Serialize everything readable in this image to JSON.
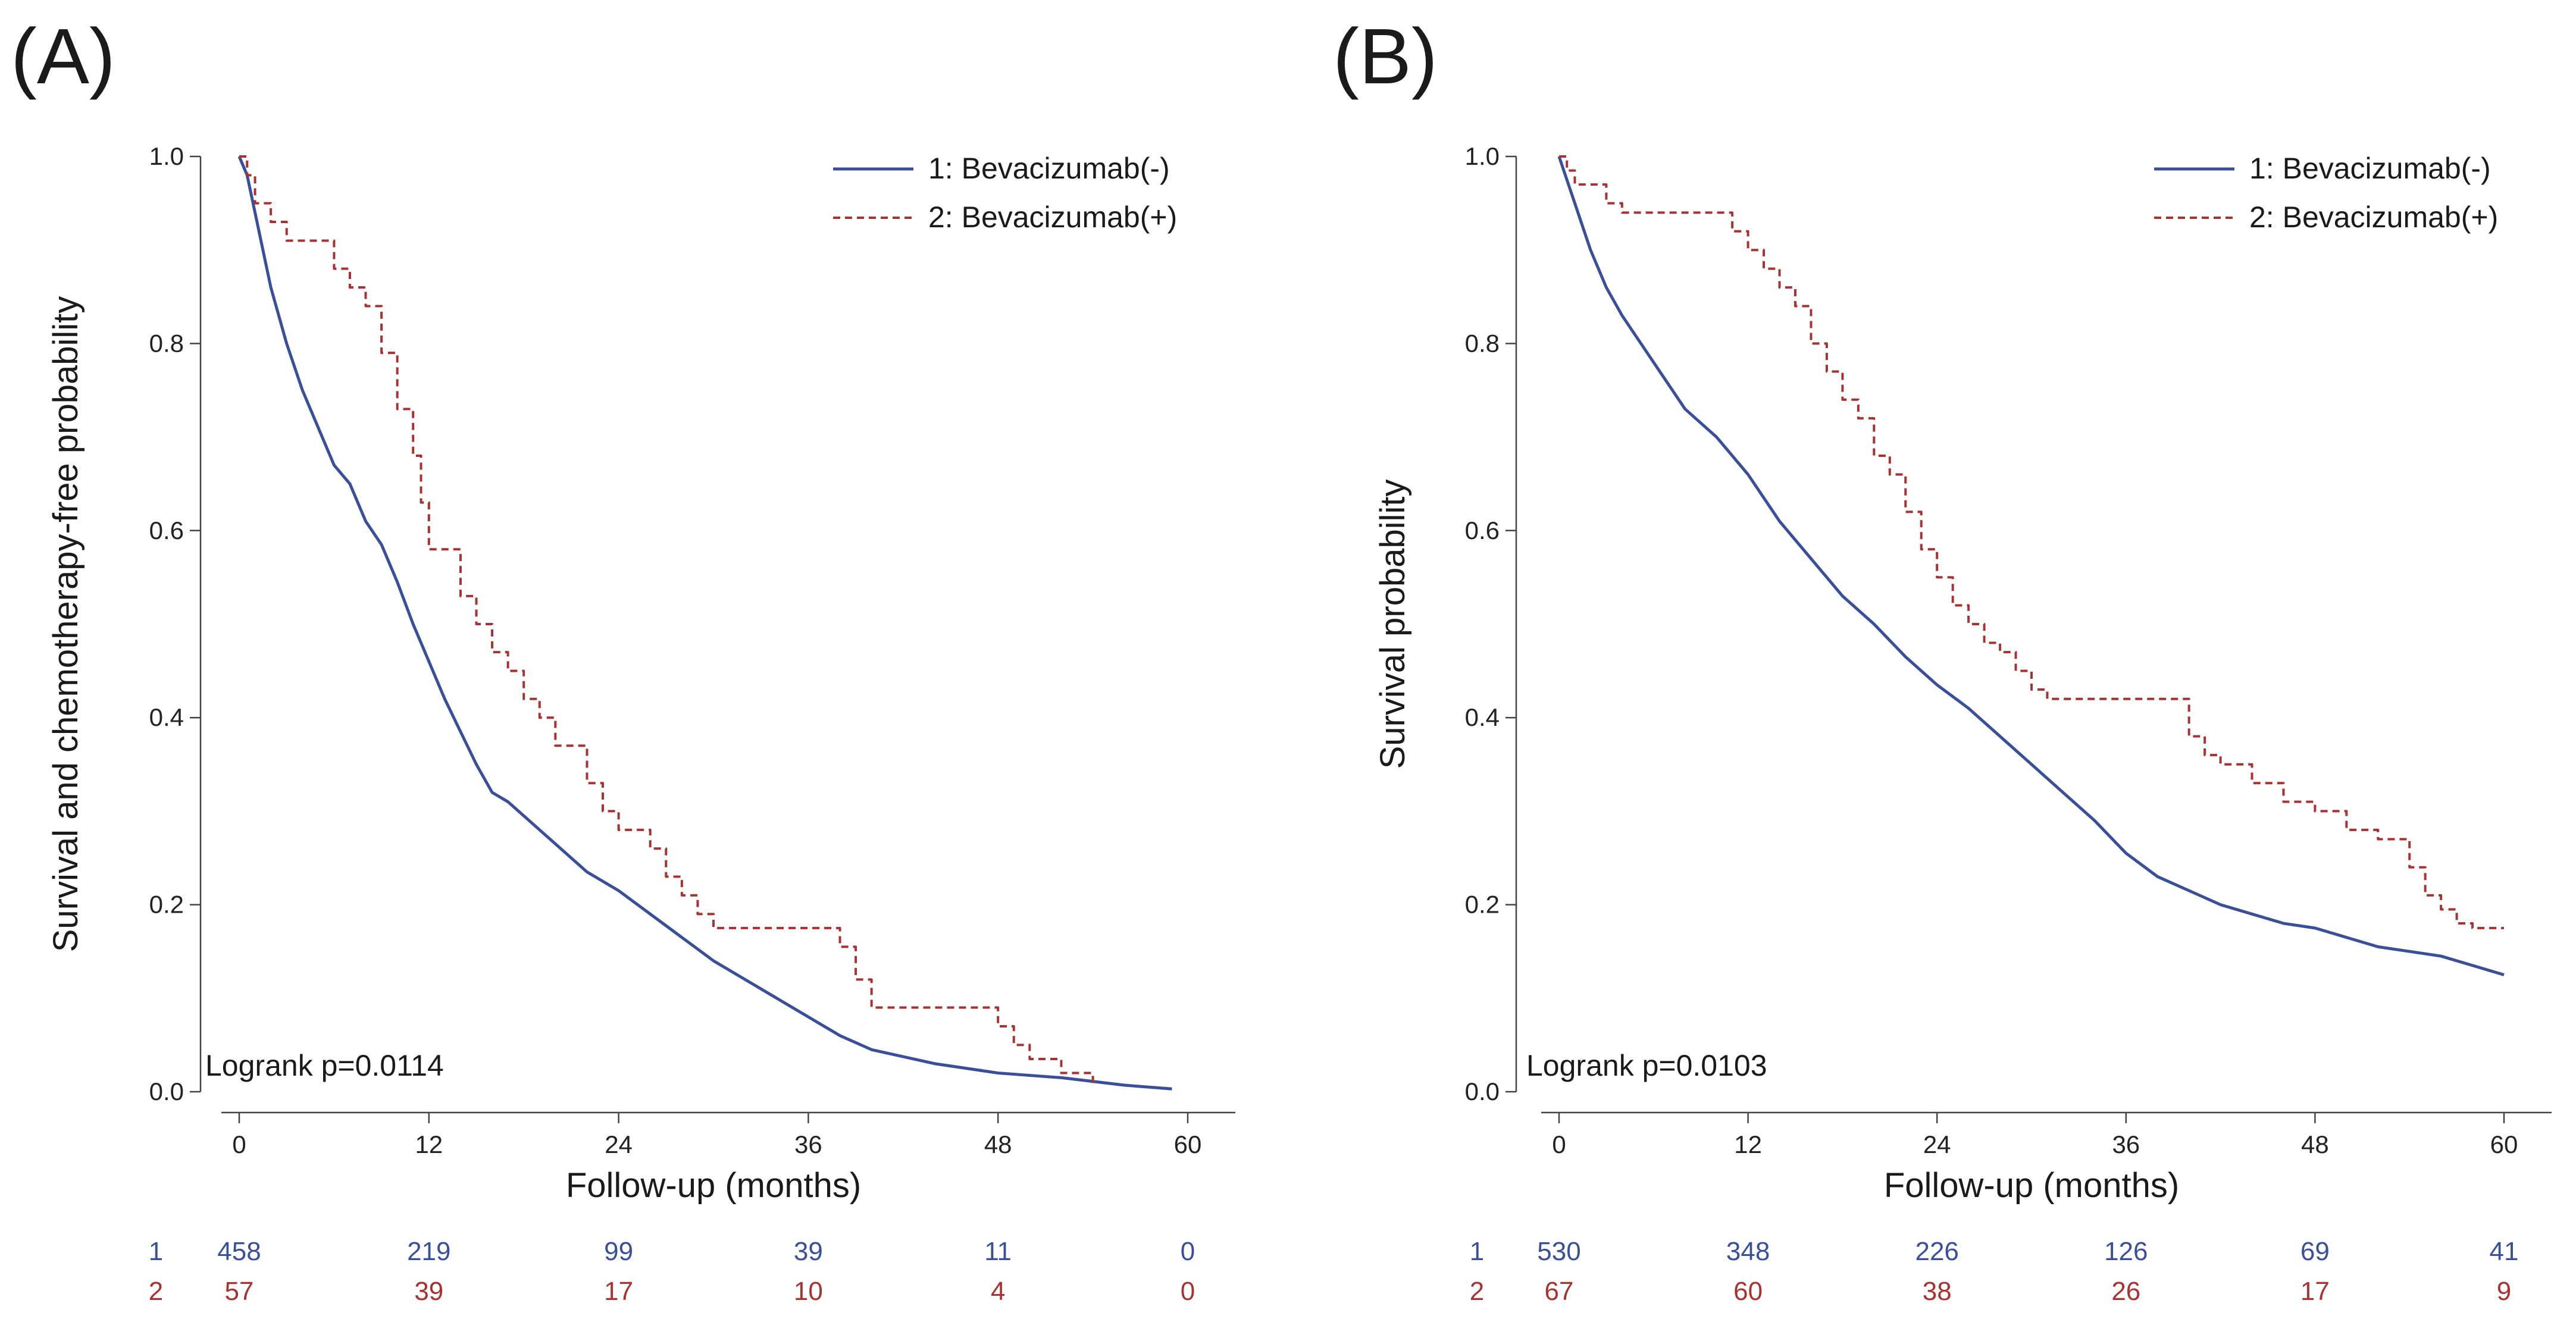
{
  "chart_data": [
    {
      "type": "line",
      "panel_label": "(A)",
      "ylabel": "Survival and chemotherapy-free probability",
      "xlabel": "Follow-up (months)",
      "xlim": [
        0,
        60
      ],
      "ylim": [
        0,
        1
      ],
      "xticks": [
        "0",
        "12",
        "24",
        "36",
        "48",
        "60"
      ],
      "yticks": [
        "0.0",
        "0.2",
        "0.4",
        "0.6",
        "0.8",
        "1.0"
      ],
      "annotation": "Logrank p=0.0114",
      "legend": {
        "position": "top-right",
        "entries": [
          "1: Bevacizumab(-)",
          "2: Bevacizumab(+)"
        ]
      },
      "series": [
        {
          "name": "1: Bevacizumab(-)",
          "color": "#3a4f9a",
          "style": "solid",
          "x": [
            0,
            0.5,
            1,
            1.5,
            2,
            3,
            4,
            5,
            6,
            7,
            8,
            9,
            10,
            11,
            12,
            13,
            14,
            15,
            16,
            17,
            18,
            20,
            22,
            24,
            26,
            28,
            30,
            32,
            34,
            36,
            38,
            40,
            44,
            48,
            52,
            56,
            59
          ],
          "values": [
            1.0,
            0.98,
            0.94,
            0.9,
            0.86,
            0.8,
            0.75,
            0.71,
            0.67,
            0.65,
            0.61,
            0.585,
            0.545,
            0.5,
            0.46,
            0.42,
            0.385,
            0.35,
            0.32,
            0.31,
            0.295,
            0.265,
            0.235,
            0.215,
            0.19,
            0.165,
            0.14,
            0.12,
            0.1,
            0.08,
            0.06,
            0.045,
            0.03,
            0.02,
            0.015,
            0.007,
            0.003
          ]
        },
        {
          "name": "2: Bevacizumab(+)",
          "color": "#a83232",
          "style": "dashed",
          "step": true,
          "x": [
            0,
            0.5,
            1,
            2,
            3,
            4,
            6,
            7,
            8,
            9,
            10,
            11,
            11.5,
            12,
            14,
            15,
            16,
            17,
            18,
            19,
            20,
            22,
            23,
            24,
            26,
            27,
            28,
            29,
            30,
            38,
            39,
            40,
            48,
            49,
            50,
            52,
            54
          ],
          "values": [
            1.0,
            0.98,
            0.95,
            0.93,
            0.91,
            0.91,
            0.88,
            0.86,
            0.84,
            0.79,
            0.73,
            0.68,
            0.63,
            0.58,
            0.53,
            0.5,
            0.47,
            0.45,
            0.42,
            0.4,
            0.37,
            0.33,
            0.3,
            0.28,
            0.26,
            0.23,
            0.21,
            0.19,
            0.175,
            0.155,
            0.12,
            0.09,
            0.07,
            0.05,
            0.035,
            0.02,
            0.005
          ]
        }
      ],
      "risk_table": [
        {
          "label": "1",
          "color": "#3a4f9a",
          "values": [
            "458",
            "219",
            "99",
            "39",
            "11",
            "0"
          ]
        },
        {
          "label": "2",
          "color": "#a83232",
          "values": [
            "57",
            "39",
            "17",
            "10",
            "4",
            "0"
          ]
        }
      ]
    },
    {
      "type": "line",
      "panel_label": "(B)",
      "ylabel": "Survival probability",
      "xlabel": "Follow-up (months)",
      "xlim": [
        0,
        60
      ],
      "ylim": [
        0,
        1
      ],
      "xticks": [
        "0",
        "12",
        "24",
        "36",
        "48",
        "60"
      ],
      "yticks": [
        "0.0",
        "0.2",
        "0.4",
        "0.6",
        "0.8",
        "1.0"
      ],
      "annotation": "Logrank p=0.0103",
      "legend": {
        "position": "top-right",
        "entries": [
          "1: Bevacizumab(-)",
          "2: Bevacizumab(+)"
        ]
      },
      "series": [
        {
          "name": "1: Bevacizumab(-)",
          "color": "#3a4f9a",
          "style": "solid",
          "x": [
            0,
            1,
            2,
            3,
            4,
            6,
            8,
            10,
            12,
            14,
            16,
            18,
            20,
            22,
            24,
            26,
            28,
            30,
            32,
            34,
            36,
            38,
            40,
            42,
            44,
            46,
            48,
            50,
            52,
            54,
            56,
            58,
            60
          ],
          "values": [
            1.0,
            0.95,
            0.9,
            0.86,
            0.83,
            0.78,
            0.73,
            0.7,
            0.66,
            0.61,
            0.57,
            0.53,
            0.5,
            0.465,
            0.435,
            0.41,
            0.38,
            0.35,
            0.32,
            0.29,
            0.255,
            0.23,
            0.215,
            0.2,
            0.19,
            0.18,
            0.175,
            0.165,
            0.155,
            0.15,
            0.145,
            0.135,
            0.125
          ]
        },
        {
          "name": "2: Bevacizumab(+)",
          "color": "#a83232",
          "style": "dashed",
          "step": true,
          "x": [
            0,
            0.5,
            1,
            2,
            3,
            4,
            10,
            11,
            12,
            13,
            14,
            15,
            16,
            17,
            18,
            19,
            20,
            21,
            22,
            23,
            24,
            25,
            26,
            27,
            28,
            29,
            30,
            31,
            32,
            40,
            41,
            42,
            44,
            46,
            48,
            50,
            52,
            54,
            55,
            56,
            57,
            58,
            60
          ],
          "values": [
            1.0,
            0.985,
            0.97,
            0.97,
            0.95,
            0.94,
            0.94,
            0.92,
            0.9,
            0.88,
            0.86,
            0.84,
            0.8,
            0.77,
            0.74,
            0.72,
            0.68,
            0.66,
            0.62,
            0.58,
            0.55,
            0.52,
            0.5,
            0.48,
            0.47,
            0.45,
            0.43,
            0.42,
            0.42,
            0.38,
            0.36,
            0.35,
            0.33,
            0.31,
            0.3,
            0.28,
            0.27,
            0.24,
            0.21,
            0.195,
            0.18,
            0.175,
            0.175
          ]
        }
      ],
      "risk_table": [
        {
          "label": "1",
          "color": "#3a4f9a",
          "values": [
            "530",
            "348",
            "226",
            "126",
            "69",
            "41"
          ]
        },
        {
          "label": "2",
          "color": "#a83232",
          "values": [
            "67",
            "60",
            "38",
            "26",
            "17",
            "9"
          ]
        }
      ]
    }
  ]
}
